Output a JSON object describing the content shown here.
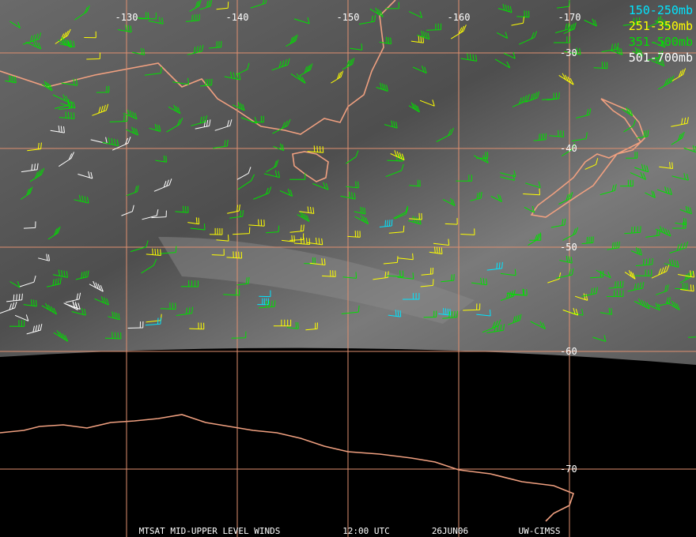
{
  "map": {
    "lon_labels": [
      -130,
      -140,
      -150,
      -160,
      -170
    ],
    "lat_labels": [
      -30,
      -40,
      -50,
      -60,
      -70
    ],
    "legend": [
      {
        "label": "150-250mb",
        "color": "#00e5ff"
      },
      {
        "label": "251-350mb",
        "color": "#ffff00"
      },
      {
        "label": "351-500mb",
        "color": "#00e000"
      },
      {
        "label": "501-700mb",
        "color": "#ffffff"
      }
    ],
    "footer": [
      "MTSAT MID-UPPER LEVEL WINDS",
      "12:00 UTC",
      "26JUN06",
      "UW-CIMSS"
    ]
  }
}
